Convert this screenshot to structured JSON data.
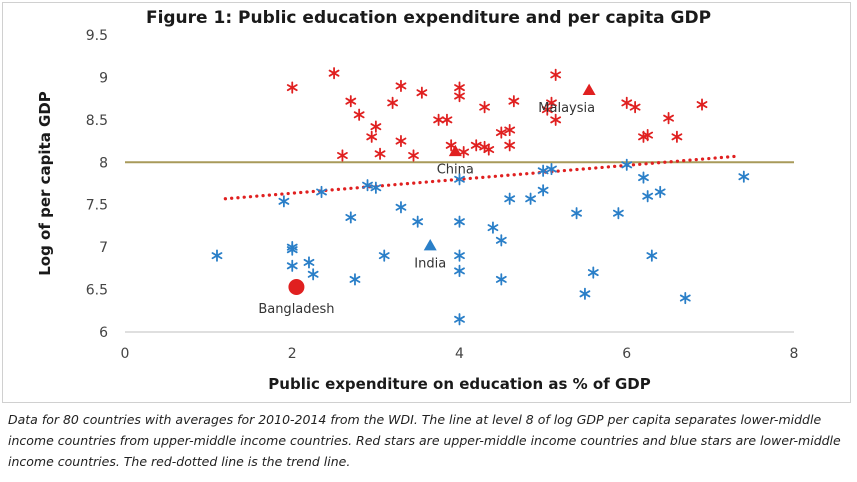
{
  "chart_data": {
    "type": "scatter",
    "title": "Figure 1: Public education expenditure and per capita GDP",
    "xlabel": "Public expenditure on education as % of GDP",
    "ylabel": "Log of per capita GDP",
    "xlim": [
      0,
      8
    ],
    "ylim": [
      6,
      9.5
    ],
    "xticks": [
      "0",
      "2",
      "4",
      "6",
      "8"
    ],
    "yticks": [
      "6",
      "6.5",
      "7",
      "7.5",
      "8",
      "8.5",
      "9",
      "9.5"
    ],
    "grid": false,
    "reference_line": {
      "y": 8,
      "color": "#a89a5a"
    },
    "trend_line": {
      "x": [
        1.2,
        7.3
      ],
      "y": [
        7.57,
        8.07
      ],
      "color": "#e02020"
    },
    "series": [
      {
        "marker": "star",
        "color": "#e02020",
        "points": [
          [
            2.0,
            8.88
          ],
          [
            2.5,
            9.05
          ],
          [
            2.6,
            8.08
          ],
          [
            2.7,
            8.72
          ],
          [
            2.8,
            8.56
          ],
          [
            2.95,
            8.3
          ],
          [
            3.0,
            8.42
          ],
          [
            3.05,
            8.1
          ],
          [
            3.2,
            8.7
          ],
          [
            3.3,
            8.9
          ],
          [
            3.3,
            8.25
          ],
          [
            3.45,
            8.08
          ],
          [
            3.55,
            8.82
          ],
          [
            3.75,
            8.5
          ],
          [
            3.85,
            8.5
          ],
          [
            3.9,
            8.2
          ],
          [
            4.0,
            8.88
          ],
          [
            4.0,
            8.78
          ],
          [
            4.05,
            8.12
          ],
          [
            4.2,
            8.2
          ],
          [
            4.3,
            8.65
          ],
          [
            4.3,
            8.18
          ],
          [
            4.35,
            8.15
          ],
          [
            4.5,
            8.35
          ],
          [
            4.6,
            8.2
          ],
          [
            4.6,
            8.38
          ],
          [
            4.65,
            8.72
          ],
          [
            5.05,
            8.62
          ],
          [
            5.1,
            8.7
          ],
          [
            5.15,
            9.03
          ],
          [
            5.15,
            8.5
          ],
          [
            6.0,
            8.7
          ],
          [
            6.1,
            8.65
          ],
          [
            6.2,
            8.3
          ],
          [
            6.25,
            8.32
          ],
          [
            6.5,
            8.52
          ],
          [
            6.6,
            8.3
          ],
          [
            6.9,
            8.68
          ]
        ]
      },
      {
        "marker": "star",
        "color": "#2a7fc8",
        "points": [
          [
            1.1,
            6.9
          ],
          [
            1.9,
            7.54
          ],
          [
            2.0,
            7.0
          ],
          [
            2.0,
            6.97
          ],
          [
            2.0,
            6.78
          ],
          [
            2.2,
            6.82
          ],
          [
            2.25,
            6.68
          ],
          [
            2.35,
            7.65
          ],
          [
            2.7,
            7.35
          ],
          [
            2.75,
            6.62
          ],
          [
            2.9,
            7.73
          ],
          [
            3.0,
            7.7
          ],
          [
            3.1,
            6.9
          ],
          [
            3.3,
            7.47
          ],
          [
            3.5,
            7.3
          ],
          [
            4.0,
            7.8
          ],
          [
            4.0,
            7.3
          ],
          [
            4.0,
            6.9
          ],
          [
            4.0,
            6.72
          ],
          [
            4.0,
            6.15
          ],
          [
            4.4,
            7.23
          ],
          [
            4.5,
            7.08
          ],
          [
            4.5,
            6.62
          ],
          [
            4.6,
            7.57
          ],
          [
            4.85,
            7.57
          ],
          [
            5.0,
            7.9
          ],
          [
            5.0,
            7.67
          ],
          [
            5.1,
            7.92
          ],
          [
            5.4,
            7.4
          ],
          [
            5.5,
            6.45
          ],
          [
            5.6,
            6.7
          ],
          [
            5.9,
            7.4
          ],
          [
            6.0,
            7.97
          ],
          [
            6.2,
            7.82
          ],
          [
            6.25,
            7.6
          ],
          [
            6.3,
            6.9
          ],
          [
            6.4,
            7.65
          ],
          [
            6.7,
            6.4
          ],
          [
            7.4,
            7.83
          ]
        ]
      }
    ],
    "highlighted": [
      {
        "label": "Malaysia",
        "x": 5.55,
        "y": 8.85,
        "marker": "triangle",
        "color": "#e02020",
        "label_pos": "below-left"
      },
      {
        "label": "China",
        "x": 3.95,
        "y": 8.13,
        "marker": "triangle",
        "color": "#e02020",
        "label_pos": "below"
      },
      {
        "label": "India",
        "x": 3.65,
        "y": 7.02,
        "marker": "triangle",
        "color": "#2a7fc8",
        "label_pos": "below"
      },
      {
        "label": "Bangladesh",
        "x": 2.05,
        "y": 6.53,
        "marker": "circle",
        "color": "#e02020",
        "label_pos": "below"
      }
    ]
  },
  "caption": "Data for 80 countries with averages for 2010-2014 from the WDI. The line at level 8 of log GDP per capita separates lower-middle income countries from upper-middle income countries. Red stars are upper-middle income countries and blue stars are lower-middle income countries. The red-dotted line is the trend line."
}
